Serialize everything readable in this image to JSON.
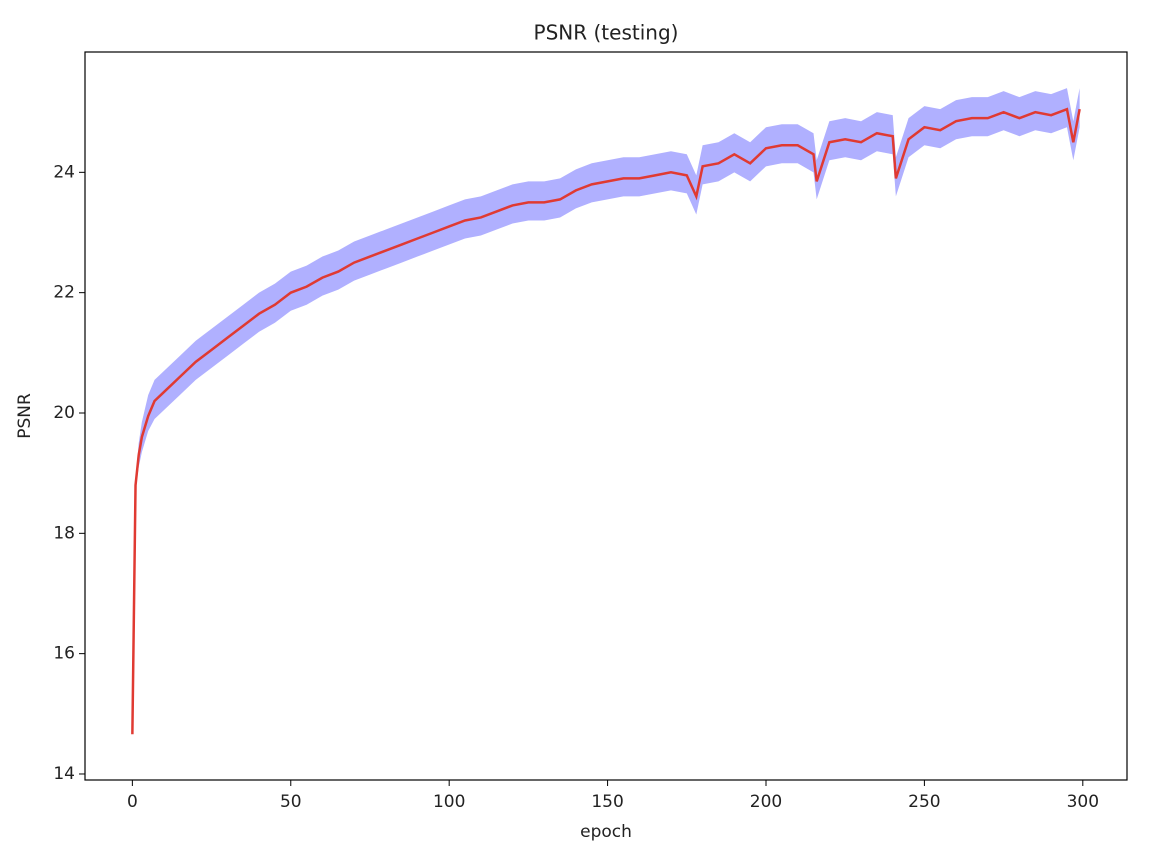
{
  "chart_data": {
    "type": "line",
    "title": "PSNR (testing)",
    "x_label": "epoch",
    "y_label": "PSNR",
    "x": [
      0,
      1,
      2,
      3,
      5,
      7,
      10,
      15,
      20,
      25,
      30,
      35,
      40,
      45,
      50,
      55,
      60,
      65,
      70,
      75,
      80,
      85,
      90,
      95,
      100,
      105,
      110,
      115,
      120,
      125,
      130,
      135,
      140,
      145,
      150,
      155,
      160,
      165,
      170,
      175,
      178,
      180,
      185,
      190,
      195,
      200,
      205,
      210,
      215,
      216,
      220,
      225,
      230,
      235,
      240,
      241,
      245,
      250,
      255,
      260,
      265,
      270,
      275,
      280,
      285,
      290,
      295,
      297,
      299
    ],
    "series": [
      {
        "color": "#e03a32",
        "values": [
          14.66,
          18.8,
          19.3,
          19.6,
          19.95,
          20.2,
          20.35,
          20.6,
          20.85,
          21.05,
          21.25,
          21.45,
          21.65,
          21.8,
          22.0,
          22.1,
          22.25,
          22.35,
          22.5,
          22.6,
          22.7,
          22.8,
          22.9,
          23.0,
          23.1,
          23.2,
          23.25,
          23.35,
          23.45,
          23.5,
          23.5,
          23.55,
          23.7,
          23.8,
          23.85,
          23.9,
          23.9,
          23.95,
          24.0,
          23.95,
          23.6,
          24.1,
          24.15,
          24.3,
          24.15,
          24.4,
          24.45,
          24.45,
          24.3,
          23.85,
          24.5,
          24.55,
          24.5,
          24.65,
          24.6,
          23.9,
          24.55,
          24.75,
          24.7,
          24.85,
          24.9,
          24.9,
          25.0,
          24.9,
          25.0,
          24.95,
          25.05,
          24.5,
          25.05
        ]
      }
    ],
    "band": {
      "color": "#b0b0ff",
      "lower": [
        14.66,
        18.7,
        19.1,
        19.35,
        19.7,
        19.9,
        20.05,
        20.3,
        20.55,
        20.75,
        20.95,
        21.15,
        21.35,
        21.5,
        21.7,
        21.8,
        21.95,
        22.05,
        22.2,
        22.3,
        22.4,
        22.5,
        22.6,
        22.7,
        22.8,
        22.9,
        22.95,
        23.05,
        23.15,
        23.2,
        23.2,
        23.25,
        23.4,
        23.5,
        23.55,
        23.6,
        23.6,
        23.65,
        23.7,
        23.65,
        23.3,
        23.8,
        23.85,
        24.0,
        23.85,
        24.1,
        24.15,
        24.15,
        24.0,
        23.55,
        24.2,
        24.25,
        24.2,
        24.35,
        24.3,
        23.6,
        24.25,
        24.45,
        24.4,
        24.55,
        24.6,
        24.6,
        24.7,
        24.6,
        24.7,
        24.65,
        24.75,
        24.2,
        24.75
      ],
      "upper": [
        14.66,
        18.9,
        19.5,
        19.85,
        20.3,
        20.55,
        20.7,
        20.95,
        21.2,
        21.4,
        21.6,
        21.8,
        22.0,
        22.15,
        22.35,
        22.45,
        22.6,
        22.7,
        22.85,
        22.95,
        23.05,
        23.15,
        23.25,
        23.35,
        23.45,
        23.55,
        23.6,
        23.7,
        23.8,
        23.85,
        23.85,
        23.9,
        24.05,
        24.15,
        24.2,
        24.25,
        24.25,
        24.3,
        24.35,
        24.3,
        23.95,
        24.45,
        24.5,
        24.65,
        24.5,
        24.75,
        24.8,
        24.8,
        24.65,
        24.2,
        24.85,
        24.9,
        24.85,
        25.0,
        24.95,
        24.25,
        24.9,
        25.1,
        25.05,
        25.2,
        25.25,
        25.25,
        25.35,
        25.25,
        25.35,
        25.3,
        25.4,
        24.85,
        25.4
      ]
    },
    "xlim": [
      -14.95,
      313.95
    ],
    "ylim": [
      13.9,
      26.0
    ],
    "xticks": [
      0,
      50,
      100,
      150,
      200,
      250,
      300
    ],
    "yticks": [
      14,
      16,
      18,
      20,
      22,
      24
    ]
  }
}
